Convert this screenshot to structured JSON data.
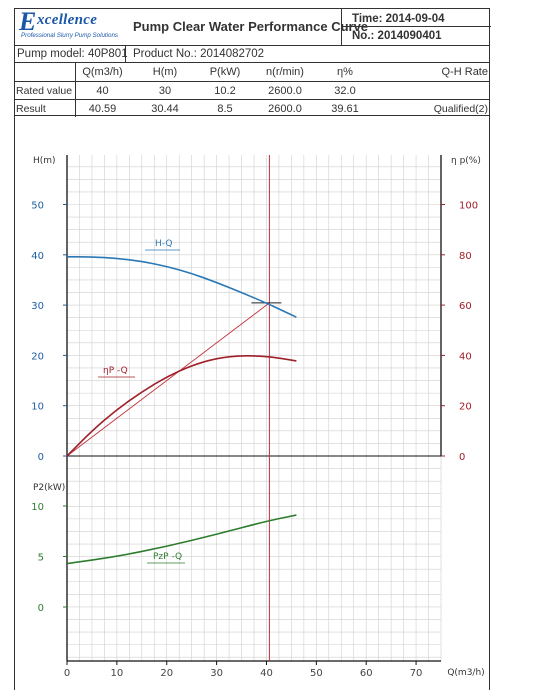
{
  "header": {
    "logo_text": "Excellence",
    "logo_tagline": "Professional Slurry Pump Solutions",
    "title": "Pump Clear Water Performance Curve",
    "time_label": "Time: 2014-09-04",
    "no_label": "No.: 2014090401",
    "pump_model": "Pump model: 40P801",
    "product_no": "Product No.: 2014082702"
  },
  "table": {
    "columns": [
      "Q(m3/h)",
      "H(m)",
      "P(kW)",
      "n(r/min)",
      "η%",
      "Q-H Rate"
    ],
    "rows": [
      {
        "label": "Rated value",
        "values": [
          "40",
          "30",
          "10.2",
          "2600.0",
          "32.0",
          ""
        ]
      },
      {
        "label": "Result",
        "values": [
          "40.59",
          "30.44",
          "8.5",
          "2600.0",
          "39.61",
          "Qualified(2)"
        ]
      }
    ]
  },
  "chart_data": {
    "type": "line",
    "x_axis": {
      "label": "Q(m3/h)",
      "range": [
        0,
        75
      ],
      "ticks": [
        "0",
        "10",
        "20",
        "30",
        "40",
        "50",
        "60",
        "70"
      ]
    },
    "h_axis": {
      "label": "H(m)",
      "range": [
        0,
        56
      ],
      "ticks": [
        "0",
        "10",
        "20",
        "30",
        "40",
        "50"
      ]
    },
    "eff_axis": {
      "label": "η p(%)",
      "range": [
        0,
        112
      ],
      "ticks": [
        "0",
        "20",
        "40",
        "60",
        "80",
        "100"
      ]
    },
    "p_axis": {
      "label": "P2(kW)",
      "range": [
        0,
        12.5
      ],
      "ticks": [
        "0",
        "5",
        "10"
      ]
    },
    "grid": true,
    "series": [
      {
        "name": "H-Q",
        "axis": "h",
        "color": "#2a78b5",
        "points": [
          [
            0,
            39.6
          ],
          [
            5,
            39.6
          ],
          [
            10,
            39.3
          ],
          [
            15,
            38.7
          ],
          [
            20,
            37.7
          ],
          [
            25,
            36.3
          ],
          [
            30,
            34.5
          ],
          [
            35,
            32.5
          ],
          [
            40,
            30.4
          ],
          [
            43,
            29.0
          ],
          [
            46,
            27.6
          ]
        ]
      },
      {
        "name": "ηp -Q",
        "axis": "eff",
        "color": "#a0202a",
        "points": [
          [
            0,
            0
          ],
          [
            5,
            10
          ],
          [
            10,
            18.5
          ],
          [
            15,
            25.5
          ],
          [
            20,
            31.5
          ],
          [
            25,
            36
          ],
          [
            30,
            38.9
          ],
          [
            35,
            40
          ],
          [
            40,
            39.6
          ],
          [
            43,
            38.8
          ],
          [
            46,
            37.8
          ]
        ]
      },
      {
        "name": "P2P -Q",
        "axis": "p",
        "color": "#2e7d2e",
        "points": [
          [
            0,
            4.3
          ],
          [
            10,
            5.0
          ],
          [
            20,
            6.0
          ],
          [
            30,
            7.2
          ],
          [
            40,
            8.5
          ],
          [
            46,
            9.1
          ]
        ]
      }
    ],
    "duty_point": {
      "q": 40.59,
      "h": 30.44
    },
    "series_labels": [
      "H-Q",
      "ηP -Q",
      "PzP -Q"
    ]
  }
}
